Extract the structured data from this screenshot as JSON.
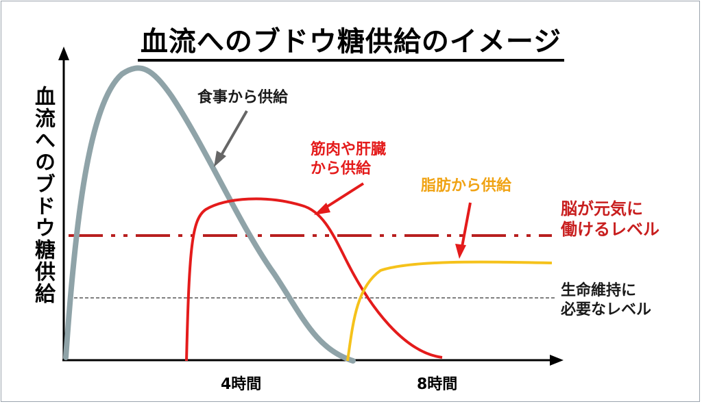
{
  "title": "血流へのブドウ糖供給のイメージ",
  "y_axis_label": "血流へのブドウ糖供給",
  "x_ticks": [
    "4時間",
    "8時間"
  ],
  "curves": {
    "food": {
      "label": "食事から供給",
      "color": "#8fa3a8"
    },
    "muscle_liver": {
      "label_line1": "筋肉や肝臓",
      "label_line2": "から供給",
      "color": "#e41b1b"
    },
    "fat": {
      "label": "脂肪から供給",
      "color": "#f5c21b"
    }
  },
  "levels": {
    "brain": {
      "label_line1": "脳が元気に",
      "label_line2": "働けるレベル",
      "color": "#b81f1f"
    },
    "survival": {
      "label_line1": "生命維持に",
      "label_line2": "必要なレベル",
      "color": "#333333"
    }
  }
}
